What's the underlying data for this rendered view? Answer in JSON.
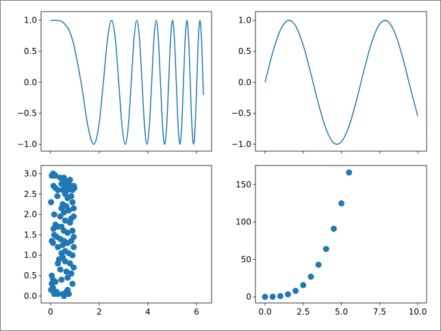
{
  "chart_data": [
    {
      "type": "line",
      "color": "#1f77b4",
      "x": [
        0,
        0.5,
        0.886,
        1.253,
        1.535,
        1.772,
        1.982,
        2.171,
        2.345,
        2.507,
        2.659,
        2.802,
        2.939,
        3.07,
        3.195,
        3.316,
        3.432,
        3.545,
        3.654,
        3.76,
        3.863,
        3.963,
        4.061,
        4.157,
        4.25,
        4.342,
        4.431,
        4.519,
        4.605,
        4.69,
        4.773,
        4.854,
        4.934,
        5.013,
        5.091,
        5.168,
        5.243,
        5.317,
        5.391,
        5.463,
        5.535,
        5.605,
        5.675,
        5.743,
        5.811,
        5.879,
        5.945,
        6.011,
        6.076,
        6.14,
        6.204,
        6.267,
        6.283
      ],
      "values": [
        1,
        0.969,
        0.707,
        0,
        -0.707,
        -1,
        -0.707,
        0,
        0.707,
        1,
        0.707,
        0,
        -0.707,
        -1,
        -0.707,
        0,
        0.707,
        1,
        0.707,
        0,
        -0.707,
        -1,
        -0.707,
        0,
        0.707,
        1,
        0.707,
        0,
        -0.707,
        -1,
        -0.707,
        0,
        0.707,
        1,
        0.707,
        0,
        -0.707,
        -1,
        -0.707,
        0,
        0.707,
        1,
        0.707,
        0,
        -0.707,
        -1,
        -0.707,
        0,
        0.707,
        1,
        0.707,
        0,
        -0.207
      ],
      "xlim": [
        -0.39,
        6.62
      ],
      "ylim": [
        -1.11,
        1.14
      ],
      "xticks": [
        0,
        2,
        4,
        6
      ],
      "xtick_labels": false,
      "yticks": [
        {
          "value": -1,
          "label": "−1.0"
        },
        {
          "value": -0.5,
          "label": "−0.5"
        },
        {
          "value": 0,
          "label": "0.0"
        },
        {
          "value": 0.5,
          "label": "0.5"
        },
        {
          "value": 1,
          "label": "1.0"
        }
      ]
    },
    {
      "type": "line",
      "color": "#1f77b4",
      "x": [
        0,
        0.5,
        1,
        1.5,
        2,
        2.5,
        3,
        3.5,
        4,
        4.5,
        5,
        5.5,
        6,
        6.5,
        7,
        7.5,
        8,
        8.5,
        9,
        9.5,
        10
      ],
      "values": [
        0,
        0.479,
        0.841,
        0.997,
        0.909,
        0.598,
        0.141,
        -0.351,
        -0.757,
        -0.978,
        -0.959,
        -0.706,
        -0.279,
        0.215,
        0.657,
        0.938,
        0.989,
        0.798,
        0.412,
        -0.075,
        -0.544
      ],
      "xlim": [
        -0.63,
        10.58
      ],
      "ylim": [
        -1.11,
        1.14
      ],
      "xticks": [
        0,
        2.5,
        5,
        7.5,
        10
      ],
      "xtick_labels": false,
      "yticks": [
        {
          "value": -1,
          "label": "−1.0"
        },
        {
          "value": -0.5,
          "label": "−0.5"
        },
        {
          "value": 0,
          "label": "0.0"
        },
        {
          "value": 0.5,
          "label": "0.5"
        },
        {
          "value": 1,
          "label": "1.0"
        }
      ]
    },
    {
      "type": "scatter",
      "color": "#1f77b4",
      "x": [
        0.02,
        0.05,
        0.1,
        0.15,
        0.2,
        0.12,
        0.2,
        0.3,
        0.28,
        0.4,
        0.45,
        0.5,
        0.55,
        0.6,
        0.65,
        0.7,
        0.75,
        0.8,
        0.85,
        0.9,
        0.95,
        0.98,
        0.5,
        0.6,
        0.7,
        0.85,
        0.9,
        0.95,
        0.65,
        0.5,
        0.45,
        0.55,
        0.75,
        0.85,
        0.95,
        0.8,
        0.6,
        0.4,
        0.15,
        0.12,
        0.2,
        0.3,
        0.45,
        0.55,
        0.7,
        0.9,
        0.95,
        0.15,
        0.25,
        0.4,
        0.55,
        0.05,
        0.1,
        0.3,
        0.5,
        0.7,
        0.85,
        0.95,
        0.45,
        0.6,
        0.75,
        0.9,
        0.35,
        0.5,
        0.3,
        0.6,
        0.8,
        0.95,
        0.4,
        0.65,
        0.85,
        0.05,
        0.1,
        0.05,
        0.2,
        0.45,
        0.7,
        0.9,
        0.02,
        0.1,
        0.15,
        0.25,
        0.3,
        0.5,
        0.55,
        0.65,
        0.7,
        0.75
      ],
      "values": [
        2.3,
        2.95,
        3.0,
        2.98,
        2.95,
        2.7,
        2.65,
        2.6,
        2.45,
        2.9,
        2.75,
        2.85,
        2.9,
        2.7,
        2.8,
        2.6,
        2.75,
        2.85,
        2.7,
        2.6,
        2.7,
        2.65,
        2.6,
        2.5,
        2.4,
        2.45,
        2.3,
        2.15,
        2.2,
        2.25,
        2.15,
        2.05,
        2.1,
        1.9,
        1.95,
        1.8,
        1.85,
        1.95,
        2.0,
        1.65,
        1.75,
        1.7,
        1.7,
        1.6,
        1.55,
        1.6,
        1.45,
        1.5,
        1.45,
        1.4,
        1.35,
        1.35,
        1.3,
        1.2,
        1.25,
        1.3,
        1.35,
        1.2,
        1.05,
        1.1,
        1.05,
        1.0,
        0.9,
        0.95,
        0.8,
        0.85,
        0.8,
        0.7,
        0.65,
        0.6,
        0.55,
        0.5,
        0.4,
        0.3,
        0.35,
        0.4,
        0.45,
        0.3,
        0.15,
        0.2,
        0.05,
        0.1,
        0.05,
        0.05,
        0.0,
        0.1,
        0.15,
        0.05
      ],
      "xlim": [
        -0.39,
        6.62
      ],
      "ylim": [
        -0.17,
        3.2
      ],
      "xticks": [
        0,
        2,
        4,
        6
      ],
      "xtick_labels": true,
      "yticks": [
        {
          "value": 0,
          "label": "0.0"
        },
        {
          "value": 0.5,
          "label": "0.5"
        },
        {
          "value": 1,
          "label": "1.0"
        },
        {
          "value": 1.5,
          "label": "1.5"
        },
        {
          "value": 2,
          "label": "2.0"
        },
        {
          "value": 2.5,
          "label": "2.5"
        },
        {
          "value": 3,
          "label": "3.0"
        }
      ]
    },
    {
      "type": "scatter",
      "color": "#1f77b4",
      "x": [
        0,
        0.5,
        1,
        1.5,
        2,
        2.5,
        3,
        3.5,
        4,
        4.5,
        5,
        5.5
      ],
      "values": [
        0,
        0.125,
        1,
        3.375,
        8,
        15.625,
        27,
        42.875,
        64,
        91.125,
        125,
        166.375
      ],
      "xlim": [
        -0.63,
        10.58
      ],
      "ylim": [
        -8.2,
        175.7
      ],
      "xticks": [
        {
          "value": 0,
          "label": "0.0"
        },
        {
          "value": 2.5,
          "label": "2.5"
        },
        {
          "value": 5,
          "label": "5.0"
        },
        {
          "value": 7.5,
          "label": "7.5"
        },
        {
          "value": 10,
          "label": "10.0"
        }
      ],
      "xtick_labels": true,
      "yticks": [
        0,
        50,
        100,
        150
      ]
    }
  ]
}
